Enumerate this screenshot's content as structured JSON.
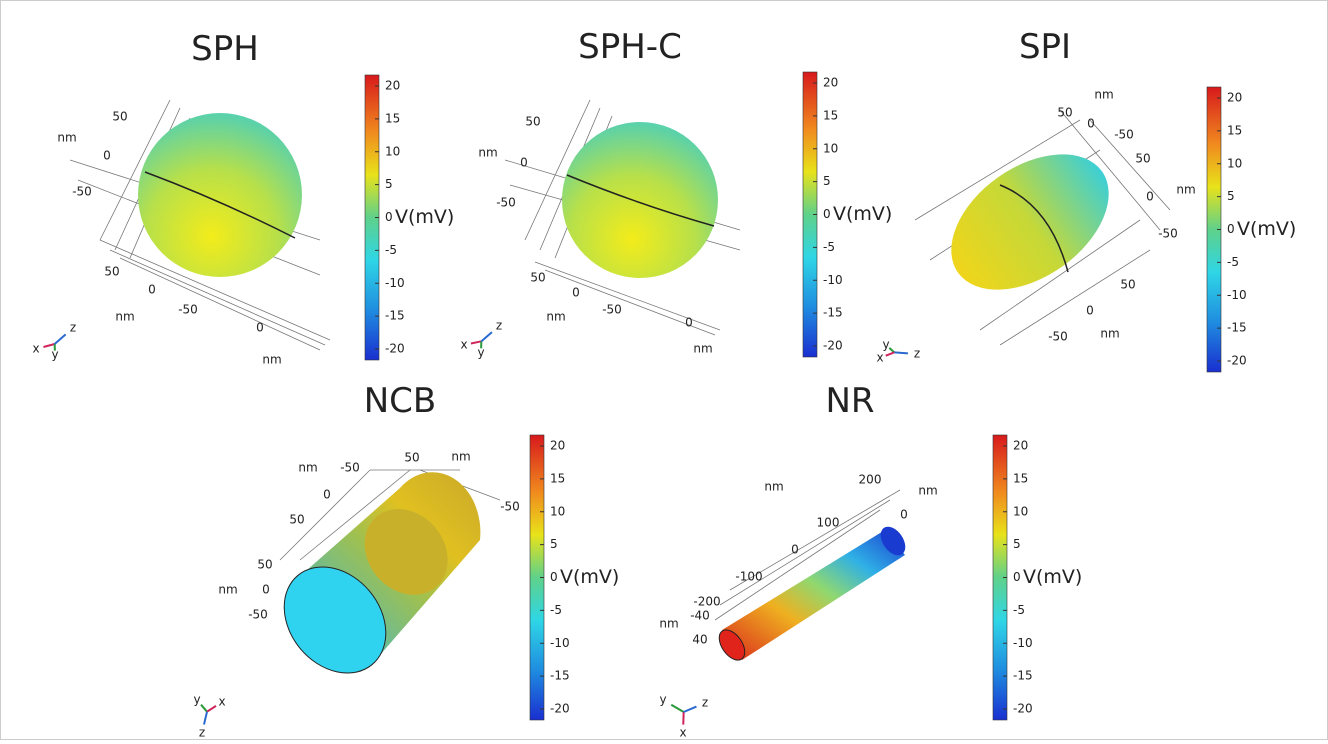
{
  "panels": [
    {
      "title": "SPH",
      "colorbar": {
        "ticks": [
          "20",
          "15",
          "10",
          "5",
          "0",
          "-5",
          "-10",
          "-15",
          "-20"
        ],
        "label": "V(mV)"
      },
      "axis_labels": [
        "50",
        "nm",
        "0",
        "-50",
        "50",
        "0",
        "nm",
        "-50",
        "0",
        "nm"
      ],
      "triad": [
        "x",
        "y",
        "z"
      ]
    },
    {
      "title": "SPH-C",
      "colorbar": {
        "ticks": [
          "20",
          "15",
          "10",
          "5",
          "0",
          "-5",
          "-10",
          "-15",
          "-20"
        ],
        "label": "V(mV)"
      },
      "axis_labels": [
        "50",
        "nm",
        "0",
        "-50",
        "50",
        "0",
        "nm",
        "-50",
        "0",
        "nm"
      ],
      "triad": [
        "x",
        "y",
        "z"
      ]
    },
    {
      "title": "SPI",
      "colorbar": {
        "ticks": [
          "20",
          "15",
          "10",
          "5",
          "0",
          "-5",
          "-10",
          "-15",
          "-20"
        ],
        "label": "V(mV)"
      },
      "axis_labels": [
        "nm",
        "50",
        "0",
        "-50",
        "50",
        "0",
        "nm",
        "-50",
        "50",
        "0",
        "nm",
        "-50"
      ],
      "triad": [
        "y",
        "x",
        "z"
      ]
    },
    {
      "title": "NCB",
      "colorbar": {
        "ticks": [
          "20",
          "15",
          "10",
          "5",
          "0",
          "-5",
          "-10",
          "-15",
          "-20"
        ],
        "label": "V(mV)"
      },
      "axis_labels": [
        "nm",
        "-50",
        "50",
        "nm",
        "0",
        "50",
        "-50",
        "50",
        "nm",
        "0",
        "-50"
      ],
      "triad": [
        "y",
        "x",
        "z"
      ]
    },
    {
      "title": "NR",
      "colorbar": {
        "ticks": [
          "20",
          "15",
          "10",
          "5",
          "0",
          "-5",
          "-10",
          "-15",
          "-20"
        ],
        "label": "V(mV)"
      },
      "axis_labels": [
        "nm",
        "nm",
        "200",
        "0",
        "100",
        "0",
        "-100",
        "-200",
        "nm",
        "-40",
        "40"
      ],
      "triad": [
        "y",
        "x",
        "z"
      ]
    }
  ]
}
